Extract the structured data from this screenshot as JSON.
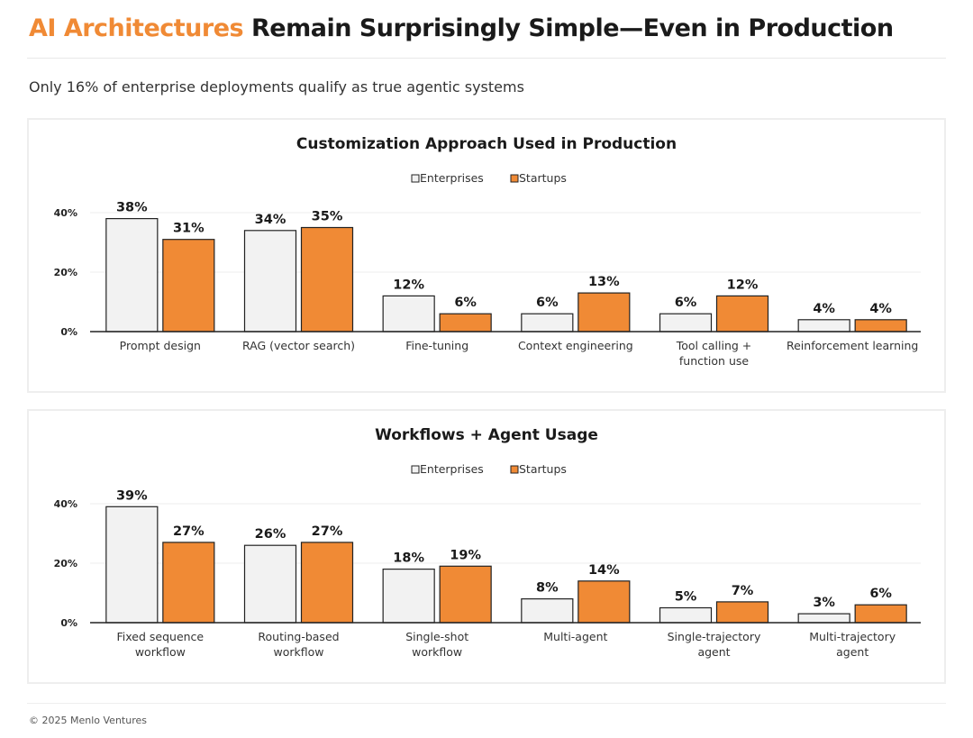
{
  "header": {
    "title_accent": "AI Architectures",
    "title_rest": " Remain Surprisingly Simple—Even in Production",
    "subtitle": "Only 16% of enterprise deployments qualify as true agentic systems"
  },
  "footer": {
    "copyright": "© 2025 Menlo Ventures"
  },
  "colors": {
    "enterprises": "#F2F2F2",
    "startups": "#F08A35",
    "bar_stroke": "#222222"
  },
  "chart_data": [
    {
      "type": "bar",
      "title": "Customization Approach Used in Production",
      "legend": [
        "Enterprises",
        "Startups"
      ],
      "ylim": [
        0,
        40
      ],
      "yticks": [
        "0%",
        "20%",
        "40%"
      ],
      "categories": [
        [
          "Prompt design"
        ],
        [
          "RAG (vector search)"
        ],
        [
          "Fine-tuning"
        ],
        [
          "Context engineering"
        ],
        [
          "Tool calling +",
          "function use"
        ],
        [
          "Reinforcement learning"
        ]
      ],
      "series": [
        {
          "name": "Enterprises",
          "values": [
            38,
            34,
            12,
            6,
            6,
            4
          ],
          "labels": [
            "38%",
            "34%",
            "12%",
            "6%",
            "6%",
            "4%"
          ]
        },
        {
          "name": "Startups",
          "values": [
            31,
            35,
            6,
            13,
            12,
            4
          ],
          "labels": [
            "31%",
            "35%",
            "6%",
            "13%",
            "12%",
            "4%"
          ]
        }
      ]
    },
    {
      "type": "bar",
      "title": "Workflows + Agent Usage",
      "legend": [
        "Enterprises",
        "Startups"
      ],
      "ylim": [
        0,
        40
      ],
      "yticks": [
        "0%",
        "20%",
        "40%"
      ],
      "categories": [
        [
          "Fixed sequence",
          "workflow"
        ],
        [
          "Routing-based",
          "workflow"
        ],
        [
          "Single-shot",
          "workflow"
        ],
        [
          "Multi-agent"
        ],
        [
          "Single-trajectory",
          "agent"
        ],
        [
          "Multi-trajectory",
          "agent"
        ]
      ],
      "series": [
        {
          "name": "Enterprises",
          "values": [
            39,
            26,
            18,
            8,
            5,
            3
          ],
          "labels": [
            "39%",
            "26%",
            "18%",
            "8%",
            "5%",
            "3%"
          ]
        },
        {
          "name": "Startups",
          "values": [
            27,
            27,
            19,
            14,
            7,
            6
          ],
          "labels": [
            "27%",
            "27%",
            "19%",
            "14%",
            "7%",
            "6%"
          ]
        }
      ]
    }
  ]
}
